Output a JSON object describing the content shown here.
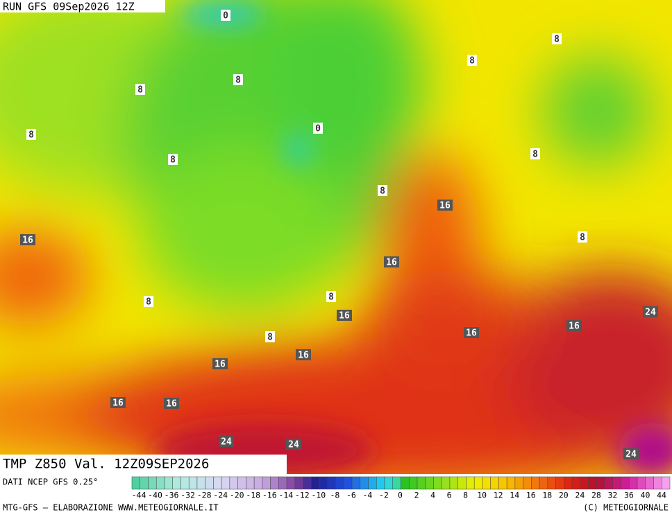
{
  "header": {
    "run": "RUN GFS 09Sep2026 12Z"
  },
  "contour_labels": [
    "0",
    "8",
    "8",
    "8",
    "8",
    "0",
    "8",
    "8",
    "8",
    "8",
    "16",
    "16",
    "8",
    "16",
    "8",
    "8",
    "24",
    "16",
    "16",
    "16",
    "8",
    "16",
    "16",
    "16",
    "16",
    "24",
    "24",
    "24"
  ],
  "footer": {
    "title": "TMP Z850 Val. 12Z09SEP2026",
    "source": "DATI NCEP GFS 0.25°",
    "credit": "MTG-GFS — ELABORAZIONE WWW.METEOGIORNALE.IT",
    "copyright": "(C) METEOGIORNALE"
  },
  "scale_labels": [
    -44,
    -40,
    -36,
    -32,
    -28,
    -24,
    -20,
    -18,
    -16,
    -14,
    -12,
    -10,
    -8,
    -6,
    -4,
    -2,
    0,
    2,
    4,
    6,
    8,
    10,
    12,
    14,
    16,
    18,
    20,
    24,
    28,
    32,
    36,
    40,
    44
  ]
}
